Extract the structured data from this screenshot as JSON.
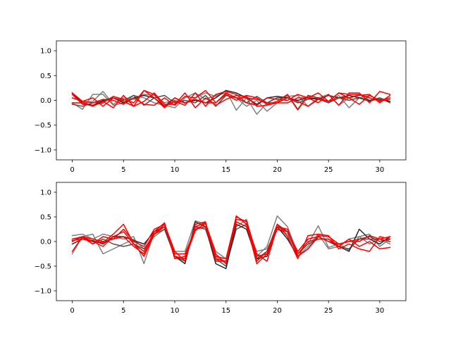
{
  "chart_data": [
    {
      "type": "line",
      "xlim": [
        -1.55,
        32.55
      ],
      "ylim": [
        -1.2,
        1.2
      ],
      "xticks": [
        0,
        5,
        10,
        15,
        20,
        25,
        30
      ],
      "yticks": [
        -1.0,
        -0.5,
        0.0,
        0.5,
        1.0
      ],
      "xtick_labels": [
        "0",
        "5",
        "10",
        "15",
        "20",
        "25",
        "30"
      ],
      "ytick_labels": [
        "−1.0",
        "−0.5",
        "0.0",
        "0.5",
        "1.0"
      ],
      "grid": false,
      "series": [
        {
          "color": "#808080",
          "values": [
            0.15,
            -0.05,
            -0.02,
            0.18,
            -0.08,
            0.05,
            0.02,
            0.12,
            0.1,
            -0.05,
            0.0,
            -0.06,
            0.05,
            0.15,
            0.08,
            0.2,
            -0.2,
            0.05,
            -0.28,
            -0.05,
            0.05,
            0.08,
            0.1,
            -0.12,
            0.05,
            0.12,
            -0.1,
            0.05,
            0.12,
            0.0,
            0.05,
            -0.02
          ]
        },
        {
          "color": "#808080",
          "values": [
            -0.05,
            -0.18,
            0.12,
            0.12,
            -0.1,
            -0.05,
            0.1,
            0.05,
            -0.05,
            -0.1,
            -0.15,
            0.05,
            0.15,
            0.02,
            0.1,
            0.15,
            0.05,
            -0.12,
            0.0,
            -0.22,
            -0.05,
            0.1,
            -0.2,
            0.08,
            0.02,
            -0.05,
            0.1,
            -0.15,
            0.05,
            0.1,
            0.0,
            0.05
          ]
        },
        {
          "color": "#505050",
          "values": [
            -0.08,
            -0.12,
            -0.05,
            -0.02,
            0.05,
            0.0,
            0.1,
            -0.1,
            0.05,
            0.1,
            -0.05,
            0.0,
            -0.05,
            0.1,
            -0.12,
            0.1,
            0.05,
            -0.05,
            0.08,
            -0.05,
            0.05,
            0.05,
            -0.05,
            0.02,
            0.05,
            -0.05,
            0.05,
            0.0,
            0.05,
            -0.02,
            0.05,
            -0.05
          ]
        },
        {
          "color": "#282828",
          "values": [
            0.15,
            -0.05,
            -0.1,
            0.0,
            0.05,
            -0.05,
            0.05,
            0.1,
            0.05,
            -0.12,
            0.05,
            -0.05,
            0.0,
            -0.05,
            0.05,
            0.2,
            0.15,
            0.05,
            -0.08,
            0.05,
            0.08,
            0.05,
            0.0,
            0.05,
            0.02,
            0.1,
            0.05,
            0.1,
            0.05,
            0.0,
            0.02,
            -0.02
          ]
        },
        {
          "color": "#ff0000",
          "values": [
            0.12,
            -0.08,
            -0.1,
            -0.05,
            0.08,
            0.02,
            -0.05,
            0.2,
            0.12,
            -0.12,
            -0.02,
            -0.1,
            0.15,
            -0.12,
            0.12,
            0.18,
            0.12,
            -0.05,
            -0.1,
            0.05,
            0.02,
            0.0,
            0.12,
            0.05,
            -0.05,
            0.12,
            -0.1,
            0.15,
            0.15,
            -0.05,
            0.18,
            0.12
          ]
        },
        {
          "color": "#ff0000",
          "values": [
            -0.05,
            -0.05,
            -0.12,
            -0.02,
            -0.15,
            0.1,
            -0.12,
            -0.02,
            0.15,
            -0.08,
            -0.08,
            0.15,
            -0.15,
            0.05,
            -0.1,
            0.02,
            0.1,
            0.08,
            -0.12,
            -0.1,
            -0.05,
            0.05,
            -0.02,
            -0.12,
            0.02,
            -0.02,
            0.15,
            0.05,
            0.1,
            0.12,
            -0.05,
            0.1
          ]
        },
        {
          "color": "#ff0000",
          "values": [
            0.05,
            -0.02,
            -0.05,
            0.02,
            0.0,
            -0.08,
            0.05,
            -0.08,
            -0.1,
            0.05,
            -0.1,
            0.08,
            0.05,
            0.2,
            -0.05,
            0.12,
            0.0,
            0.1,
            0.05,
            -0.08,
            -0.02,
            0.12,
            -0.18,
            0.1,
            0.05,
            -0.02,
            0.05,
            0.05,
            -0.08,
            0.1,
            0.0,
            0.05
          ]
        },
        {
          "color": "#ff0000",
          "values": [
            0.15,
            -0.02,
            0.05,
            -0.12,
            0.05,
            -0.02,
            -0.12,
            0.2,
            0.05,
            -0.15,
            0.05,
            -0.05,
            0.02,
            -0.05,
            -0.05,
            0.15,
            0.05,
            0.05,
            0.02,
            -0.05,
            -0.05,
            -0.05,
            0.05,
            0.05,
            0.15,
            -0.02,
            0.15,
            0.12,
            0.12,
            0.05,
            -0.02,
            0.02
          ]
        }
      ]
    },
    {
      "type": "line",
      "xlim": [
        -1.55,
        32.55
      ],
      "ylim": [
        -1.2,
        1.2
      ],
      "xticks": [
        0,
        5,
        10,
        15,
        20,
        25,
        30
      ],
      "yticks": [
        -1.0,
        -0.5,
        0.0,
        0.5,
        1.0
      ],
      "xtick_labels": [
        "0",
        "5",
        "10",
        "15",
        "20",
        "25",
        "30"
      ],
      "ytick_labels": [
        "−1.0",
        "−0.5",
        "0.0",
        "0.5",
        "1.0"
      ],
      "grid": false,
      "series": [
        {
          "color": "#808080",
          "values": [
            0.12,
            0.15,
            0.05,
            0.15,
            0.1,
            0.05,
            0.1,
            -0.45,
            0.2,
            0.3,
            -0.2,
            -0.2,
            0.42,
            0.35,
            -0.3,
            -0.45,
            0.3,
            0.45,
            -0.3,
            -0.1,
            0.52,
            0.3,
            -0.25,
            -0.05,
            0.32,
            -0.12,
            -0.05,
            -0.18,
            0.1,
            0.15,
            -0.1,
            0.05
          ]
        },
        {
          "color": "#808080",
          "values": [
            -0.25,
            0.1,
            0.15,
            -0.25,
            -0.15,
            -0.05,
            0.05,
            -0.15,
            0.1,
            0.25,
            -0.3,
            -0.35,
            0.25,
            0.35,
            -0.2,
            -0.35,
            0.4,
            0.3,
            -0.2,
            -0.15,
            0.25,
            0.15,
            -0.3,
            -0.1,
            0.15,
            -0.15,
            -0.1,
            0.05,
            0.1,
            -0.05,
            0.05,
            -0.05
          ]
        },
        {
          "color": "#505050",
          "values": [
            0.05,
            0.1,
            -0.05,
            0.05,
            -0.05,
            -0.1,
            -0.05,
            -0.15,
            0.15,
            0.25,
            -0.3,
            -0.4,
            0.3,
            0.25,
            -0.35,
            -0.5,
            0.25,
            0.35,
            -0.35,
            -0.2,
            0.35,
            0.2,
            -0.25,
            -0.05,
            0.05,
            0.05,
            -0.1,
            -0.15,
            0.05,
            0.1,
            0.0,
            0.05
          ]
        },
        {
          "color": "#282828",
          "values": [
            -0.05,
            0.05,
            0.02,
            -0.05,
            0.1,
            0.1,
            0.02,
            -0.05,
            0.2,
            0.3,
            -0.3,
            -0.45,
            0.4,
            0.3,
            -0.45,
            -0.55,
            0.35,
            0.25,
            -0.35,
            -0.3,
            0.3,
            0.05,
            -0.3,
            -0.15,
            0.1,
            0.0,
            -0.1,
            -0.2,
            0.25,
            0.05,
            -0.05,
            0.1
          ]
        },
        {
          "color": "#ff0000",
          "values": [
            0.02,
            0.05,
            0.0,
            -0.02,
            0.15,
            0.35,
            -0.05,
            -0.2,
            0.2,
            0.38,
            -0.3,
            -0.35,
            0.22,
            0.38,
            -0.25,
            -0.45,
            0.52,
            0.35,
            -0.45,
            -0.25,
            0.35,
            0.1,
            -0.35,
            0.12,
            0.15,
            0.12,
            -0.15,
            -0.05,
            -0.15,
            -0.2,
            0.1,
            0.05
          ]
        },
        {
          "color": "#ff0000",
          "values": [
            -0.2,
            0.1,
            0.05,
            0.0,
            0.05,
            0.1,
            -0.1,
            -0.25,
            0.15,
            0.35,
            -0.35,
            -0.3,
            0.3,
            0.38,
            -0.3,
            -0.35,
            0.5,
            0.4,
            -0.25,
            -0.4,
            0.3,
            0.25,
            -0.3,
            -0.15,
            0.12,
            0.1,
            -0.05,
            0.0,
            0.0,
            0.12,
            0.05,
            0.1
          ]
        },
        {
          "color": "#ff0000",
          "values": [
            0.05,
            0.08,
            -0.05,
            0.1,
            0.05,
            0.25,
            0.0,
            -0.1,
            0.25,
            0.35,
            -0.2,
            -0.4,
            0.35,
            0.4,
            -0.4,
            -0.4,
            0.45,
            0.42,
            -0.4,
            -0.2,
            0.3,
            0.2,
            -0.25,
            0.0,
            0.05,
            0.05,
            -0.1,
            0.05,
            -0.1,
            0.0,
            -0.15,
            -0.12
          ]
        },
        {
          "color": "#ff0000",
          "values": [
            0.0,
            0.1,
            0.0,
            -0.1,
            0.1,
            0.2,
            -0.05,
            -0.3,
            0.15,
            0.3,
            -0.25,
            -0.25,
            0.25,
            0.3,
            -0.35,
            -0.4,
            0.4,
            0.3,
            -0.3,
            -0.25,
            0.25,
            0.2,
            -0.2,
            0.05,
            0.1,
            0.0,
            -0.05,
            0.0,
            0.05,
            0.05,
            0.05,
            0.0
          ]
        }
      ]
    }
  ]
}
